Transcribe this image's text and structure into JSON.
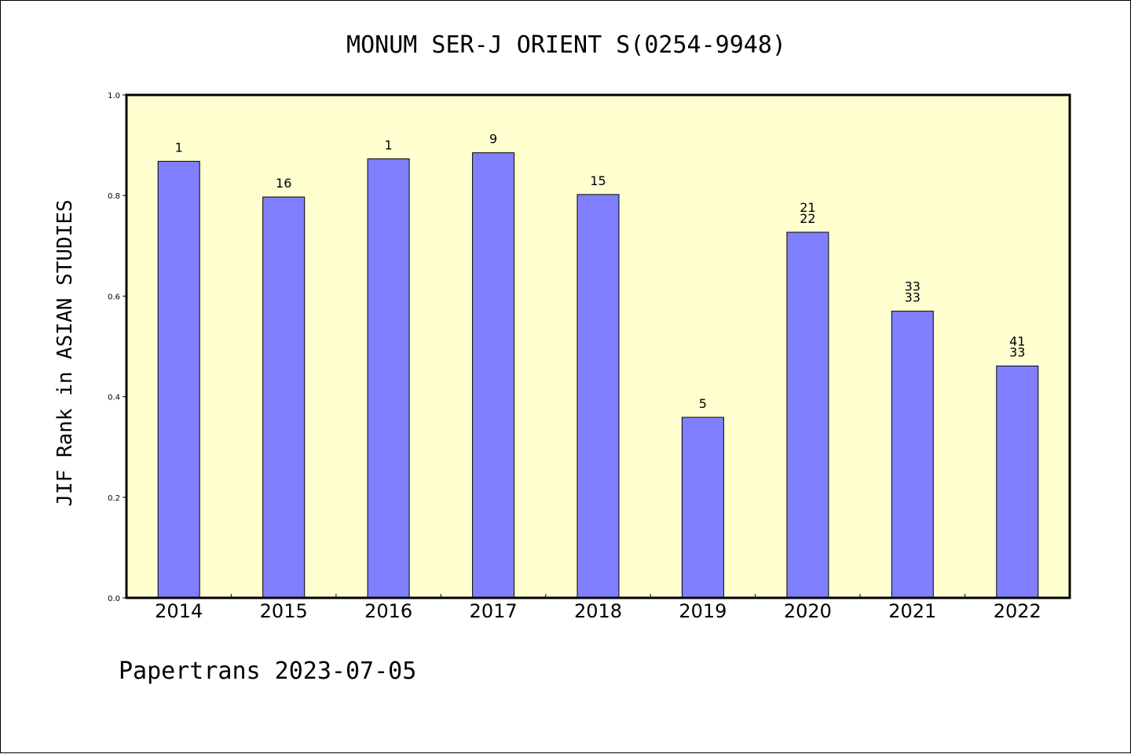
{
  "chart_data": {
    "type": "bar",
    "title": "MONUM SER-J ORIENT S(0254-9948)",
    "xlabel": "",
    "ylabel": "JIF Rank in ASIAN STUDIES",
    "ylim": [
      0,
      1.0
    ],
    "yticks": [
      "0.0",
      "0.2",
      "0.4",
      "0.6",
      "0.8",
      "1.0"
    ],
    "categories": [
      "2014",
      "2015",
      "2016",
      "2017",
      "2018",
      "2019",
      "2020",
      "2021",
      "2022"
    ],
    "values": [
      0.868,
      0.797,
      0.873,
      0.885,
      0.802,
      0.359,
      0.727,
      0.57,
      0.461
    ],
    "bar_labels": [
      [
        "1"
      ],
      [
        "16"
      ],
      [
        "1"
      ],
      [
        "9"
      ],
      [
        "15"
      ],
      [
        "5"
      ],
      [
        "21",
        "22"
      ],
      [
        "33",
        "33"
      ],
      [
        "41",
        "33"
      ]
    ],
    "grid": false,
    "colors": {
      "bar": "#8080ff",
      "plot_background": "#ffffd0",
      "axes": "#000000"
    }
  },
  "footer": "Papertrans 2023-07-05"
}
